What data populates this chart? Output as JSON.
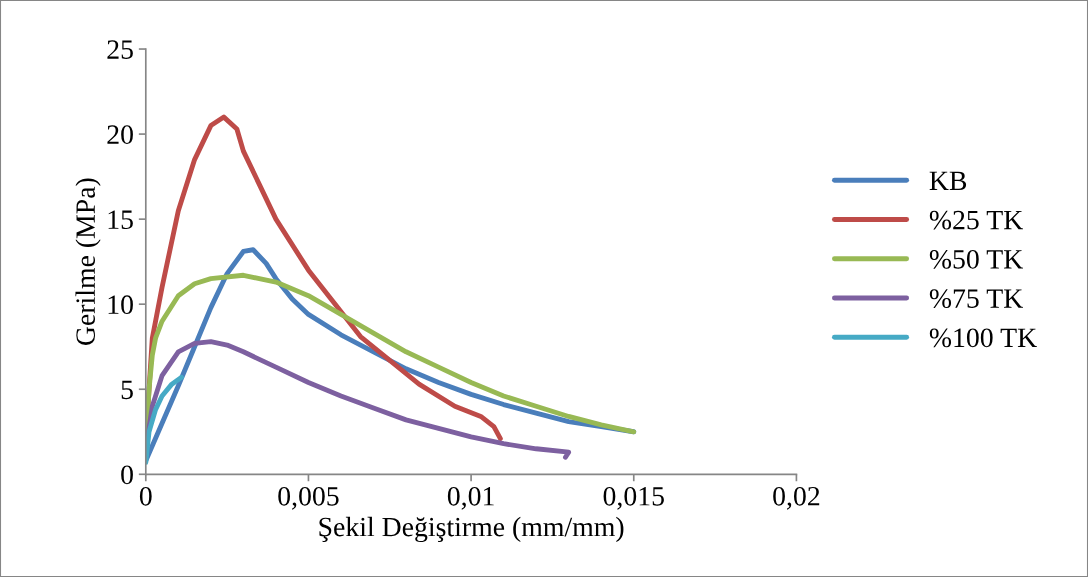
{
  "chart_data": {
    "type": "line",
    "xlabel": "Şekil Değiştirme (mm/mm)",
    "ylabel": "Gerilme (MPa)",
    "xlim": [
      0,
      0.02
    ],
    "xticks": [
      0,
      {
        "value": 0.005,
        "label": "0,005"
      },
      {
        "value": 0.01,
        "label": "0,01"
      },
      {
        "value": 0.015,
        "label": "0,015"
      },
      {
        "value": 0.02,
        "label": "0,02"
      }
    ],
    "ylim": [
      0,
      25
    ],
    "yticks": [
      0,
      5,
      10,
      15,
      20,
      25
    ],
    "grid": false,
    "legend": "right",
    "marker": "none",
    "line_style": "solid",
    "series": [
      {
        "name": "KB",
        "color": "#4a7ebb",
        "x": [
          0,
          0.0005,
          0.001,
          0.0015,
          0.002,
          0.0025,
          0.003,
          0.0033,
          0.0037,
          0.004,
          0.0045,
          0.005,
          0.006,
          0.007,
          0.008,
          0.009,
          0.01,
          0.011,
          0.012,
          0.013,
          0.014,
          0.015
        ],
        "values": [
          0.8,
          3,
          5.2,
          7.5,
          9.8,
          11.8,
          13.1,
          13.2,
          12.4,
          11.5,
          10.3,
          9.4,
          8.2,
          7.2,
          6.2,
          5.4,
          4.7,
          4.1,
          3.6,
          3.1,
          2.8,
          2.5
        ]
      },
      {
        "name": "%25 TK",
        "color": "#be4b48",
        "x": [
          0,
          0.0001,
          0.0002,
          0.0005,
          0.001,
          0.0015,
          0.002,
          0.0024,
          0.0028,
          0.003,
          0.0035,
          0.004,
          0.005,
          0.0066,
          0.0084,
          0.0095,
          0.0103,
          0.0107,
          0.0109
        ],
        "values": [
          2,
          5,
          8,
          11,
          15.5,
          18.5,
          20.5,
          21,
          20.3,
          19,
          17,
          15,
          12,
          8.1,
          5.3,
          4,
          3.4,
          2.8,
          2.1
        ]
      },
      {
        "name": "%50 TK",
        "color": "#98b954",
        "x": [
          0,
          0.0001,
          0.0002,
          0.0003,
          0.0005,
          0.001,
          0.0015,
          0.002,
          0.003,
          0.004,
          0.005,
          0.006,
          0.007,
          0.008,
          0.009,
          0.01,
          0.011,
          0.012,
          0.013,
          0.014,
          0.015
        ],
        "values": [
          1.5,
          5,
          7,
          8,
          9,
          10.5,
          11.2,
          11.5,
          11.7,
          11.3,
          10.5,
          9.4,
          8.3,
          7.2,
          6.3,
          5.4,
          4.6,
          4,
          3.4,
          2.9,
          2.5
        ]
      },
      {
        "name": "%75 TK",
        "color": "#7d60a0",
        "x": [
          0,
          0.0002,
          0.0005,
          0.001,
          0.0015,
          0.002,
          0.0025,
          0.003,
          0.004,
          0.005,
          0.006,
          0.007,
          0.008,
          0.009,
          0.01,
          0.011,
          0.012,
          0.013,
          0.0129
        ],
        "values": [
          1.5,
          4,
          5.8,
          7.2,
          7.7,
          7.8,
          7.6,
          7.2,
          6.3,
          5.4,
          4.6,
          3.9,
          3.2,
          2.7,
          2.2,
          1.8,
          1.5,
          1.3,
          1.0
        ]
      },
      {
        "name": "%100 TK",
        "color": "#46aac5",
        "x": [
          0,
          0.0001,
          0.0003,
          0.0005,
          0.0008,
          0.0011
        ],
        "values": [
          0.7,
          2.5,
          3.8,
          4.6,
          5.3,
          5.7
        ]
      }
    ]
  }
}
